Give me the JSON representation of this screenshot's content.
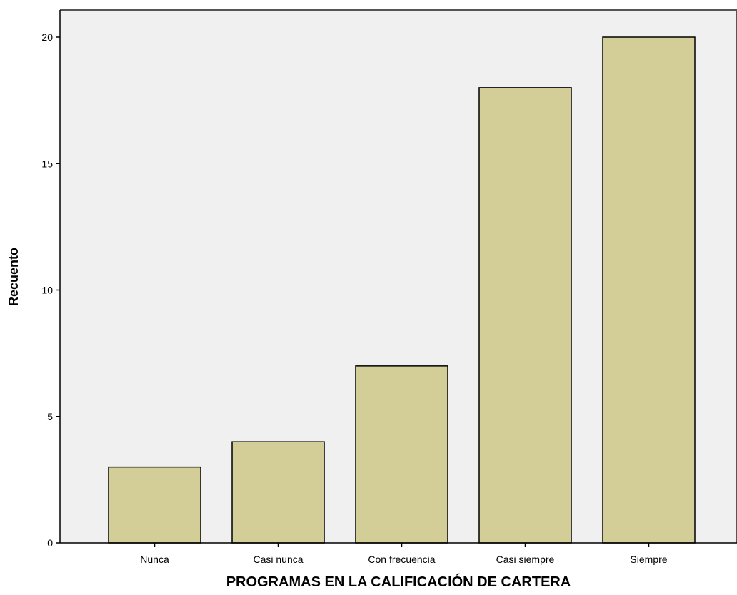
{
  "chart_data": {
    "type": "bar",
    "title": "",
    "xlabel": "PROGRAMAS EN LA CALIFICACIÓN DE CARTERA",
    "ylabel": "Recuento",
    "categories": [
      "Nunca",
      "Casi nunca",
      "Con frecuencia",
      "Casi siempre",
      "Siempre"
    ],
    "values": [
      3,
      4,
      7,
      18,
      20
    ],
    "ylim": [
      0,
      21
    ],
    "yticks": [
      0,
      5,
      10,
      15,
      20
    ],
    "grid": false,
    "colors": {
      "bar_fill": "#d3cd98",
      "bar_stroke": "#000000",
      "plot_background": "#f0f0f0",
      "frame": "#555555"
    }
  }
}
